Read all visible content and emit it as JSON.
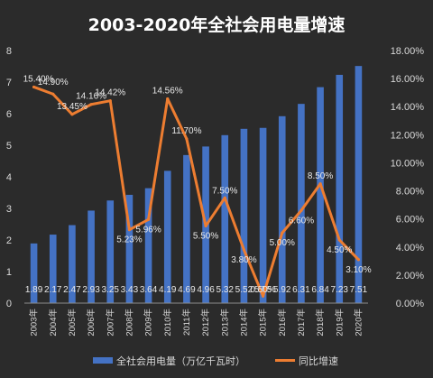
{
  "chart_data": {
    "type": "bar+line",
    "title": "2003-2020年全社会用电量增速",
    "categories": [
      "2003年",
      "2004年",
      "2005年",
      "2006年",
      "2007年",
      "2008年",
      "2009年",
      "2010年",
      "2011年",
      "2012年",
      "2013年",
      "2014年",
      "2015年",
      "2016年",
      "2017年",
      "2018年",
      "2019年",
      "2020年"
    ],
    "series": [
      {
        "name": "全社会用电量（万亿千瓦时）",
        "type": "bar",
        "axis": "left",
        "color": "#4472c4",
        "values": [
          1.89,
          2.17,
          2.47,
          2.93,
          3.25,
          3.43,
          3.64,
          4.19,
          4.69,
          4.96,
          5.32,
          5.52,
          5.55,
          5.92,
          6.31,
          6.84,
          7.23,
          7.51
        ],
        "labels": [
          "1.89",
          "2.17",
          "2.47",
          "2.93",
          "3.25",
          "3.43",
          "3.64",
          "4.19",
          "4.69",
          "4.96",
          "5.32",
          "5.52",
          "5.55",
          "5.92",
          "6.31",
          "6.84",
          "7.23",
          "7.51"
        ]
      },
      {
        "name": "同比增速",
        "type": "line",
        "axis": "right",
        "color": "#ed7d31",
        "values": [
          15.4,
          14.9,
          13.45,
          14.16,
          14.42,
          5.23,
          5.96,
          14.56,
          11.7,
          5.5,
          7.5,
          3.8,
          0.5,
          5.0,
          6.6,
          8.5,
          4.5,
          3.1
        ],
        "labels": [
          "15.40%",
          "14.90%",
          "13.45%",
          "14.16%",
          "14.42%",
          "5.23%",
          "5.96%",
          "14.56%",
          "11.70%",
          "5.50%",
          "7.50%",
          "3.80%",
          "0.50%",
          "5.00%",
          "6.60%",
          "8.50%",
          "4.50%",
          "3.10%"
        ]
      }
    ],
    "left_axis": {
      "min": 0,
      "max": 8,
      "step": 1,
      "ticks": [
        "0",
        "1",
        "2",
        "3",
        "4",
        "5",
        "6",
        "7",
        "8"
      ]
    },
    "right_axis": {
      "min": 0,
      "max": 18,
      "step": 2,
      "ticks": [
        "0.00%",
        "2.00%",
        "4.00%",
        "6.00%",
        "8.00%",
        "10.00%",
        "12.00%",
        "14.00%",
        "16.00%",
        "18.00%"
      ]
    },
    "legend": {
      "position": "bottom"
    },
    "grid": false
  }
}
